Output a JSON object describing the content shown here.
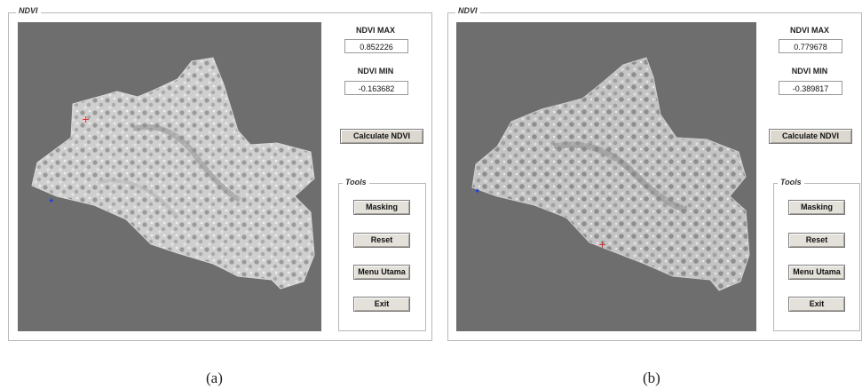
{
  "panels": [
    {
      "title": "NDVI",
      "ndvi_max_label": "NDVI MAX",
      "ndvi_max_value": "0.852226",
      "ndvi_min_label": "NDVI MIN",
      "ndvi_min_value": "-0.163682",
      "calculate_label": "Calculate NDVI",
      "tools_title": "Tools",
      "masking_label": "Masking",
      "reset_label": "Reset",
      "menu_label": "Menu Utama",
      "exit_label": "Exit",
      "caption": "(a)"
    },
    {
      "title": "NDVI",
      "ndvi_max_label": "NDVI MAX",
      "ndvi_max_value": "0.779678",
      "ndvi_min_label": "NDVI MIN",
      "ndvi_min_value": "-0.389817",
      "calculate_label": "Calculate NDVI",
      "tools_title": "Tools",
      "masking_label": "Masking",
      "reset_label": "Reset",
      "menu_label": "Menu Utama",
      "exit_label": "Exit",
      "caption": "(b)"
    }
  ],
  "colors": {
    "plot_background": "#6e6e6e",
    "marker_red": "#e02020",
    "marker_blue": "#2040e0"
  }
}
